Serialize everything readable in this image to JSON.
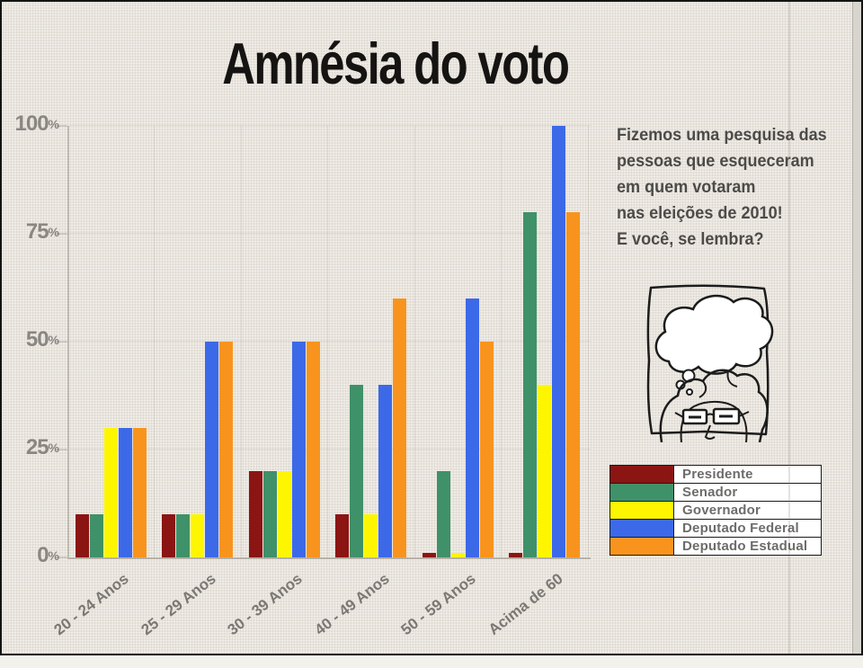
{
  "title": "Amnésia do voto",
  "annotation": {
    "lines": [
      "Fizemos uma pesquisa das",
      "pessoas que esqueceram",
      "em quem votaram",
      "nas eleições de 2010!",
      "E você, se lembra?"
    ]
  },
  "colors": {
    "background": "#e9e5de",
    "title_text": "#151413",
    "axis_text": "#8a8781",
    "annotation_text": "#4c4b49",
    "legend_text": "#6d6c6a",
    "legend_border": "#1a1a1a"
  },
  "illustration": "person-with-empty-thought-bubble",
  "chart_data": {
    "type": "bar",
    "title": "Amnésia do voto",
    "categories": [
      "20 - 24 Anos",
      "25 - 29 Anos",
      "30 - 39 Anos",
      "40 - 49 Anos",
      "50 - 59 Anos",
      "Acima de 60"
    ],
    "series": [
      {
        "name": "Presidente",
        "color": "#8b1513",
        "values": [
          10,
          10,
          20,
          10,
          1,
          1
        ]
      },
      {
        "name": "Senador",
        "color": "#3f9169",
        "values": [
          10,
          10,
          20,
          40,
          20,
          80
        ]
      },
      {
        "name": "Governador",
        "color": "#fdf600",
        "values": [
          30,
          10,
          20,
          10,
          1,
          40
        ]
      },
      {
        "name": "Deputado Federal",
        "color": "#3c69e8",
        "values": [
          30,
          50,
          50,
          40,
          60,
          100
        ]
      },
      {
        "name": "Deputado Estadual",
        "color": "#f8941d",
        "values": [
          30,
          50,
          50,
          60,
          50,
          80
        ]
      }
    ],
    "yticks": [
      0,
      25,
      50,
      75,
      100
    ],
    "ytick_suffix": "%",
    "ylim": [
      0,
      100
    ],
    "grid": true,
    "legend_position": "right-bottom"
  }
}
